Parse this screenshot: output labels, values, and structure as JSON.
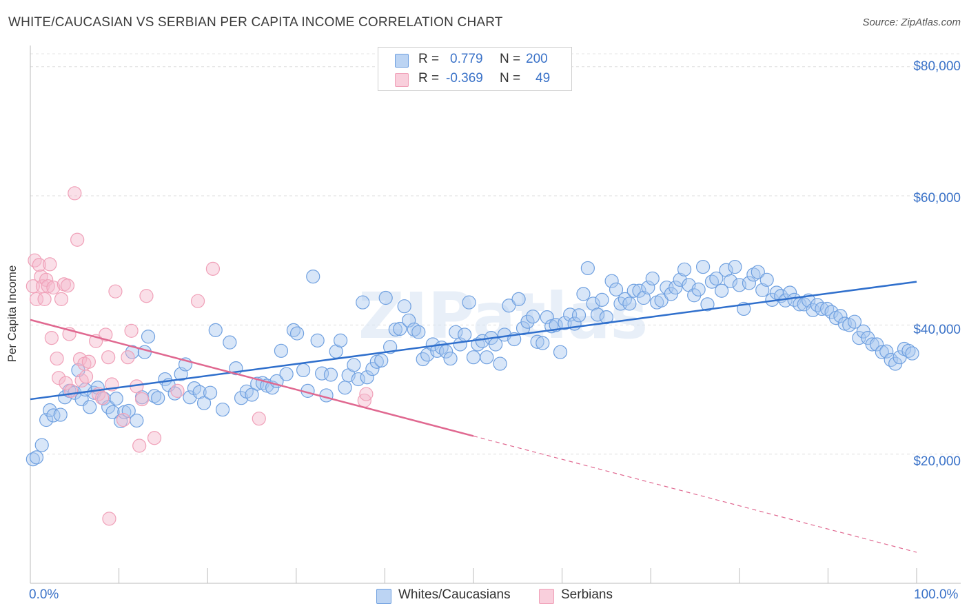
{
  "header": {
    "title": "WHITE/CAUCASIAN VS SERBIAN PER CAPITA INCOME CORRELATION CHART",
    "source": "Source: ZipAtlas.com"
  },
  "watermark": "ZIPatlas",
  "legend_top": {
    "rows": [
      {
        "r_label": "R =",
        "r_value": "0.779",
        "n_label": "N =",
        "n_value": "200",
        "color": "#a9c8f0"
      },
      {
        "r_label": "R =",
        "r_value": "-0.369",
        "n_label": "N =",
        "n_value": "49",
        "color": "#f5b8cb"
      }
    ]
  },
  "legend_bottom": [
    {
      "label": "Whites/Caucasians",
      "color": "#a9c8f0"
    },
    {
      "label": "Serbians",
      "color": "#f5b8cb"
    }
  ],
  "axis": {
    "ylabel": "Per Capita Income",
    "y_ticks": [
      "$80,000",
      "$60,000",
      "$40,000",
      "$20,000"
    ],
    "x_ticks": [
      "0.0%",
      "100.0%"
    ]
  },
  "chart_data": {
    "type": "scatter",
    "xlim": [
      0,
      100
    ],
    "ylim": [
      0,
      82000
    ],
    "x_unit": "%",
    "grid": true,
    "series": [
      {
        "name": "Whites/Caucasians",
        "color": "#6fa0e0",
        "trend": {
          "x": [
            0,
            100
          ],
          "y": [
            28500,
            46700
          ]
        },
        "points": [
          [
            0.3,
            19200
          ],
          [
            0.7,
            19500
          ],
          [
            1.3,
            21400
          ],
          [
            1.8,
            25300
          ],
          [
            2.2,
            26800
          ],
          [
            2.6,
            26000
          ],
          [
            3.4,
            26100
          ],
          [
            3.9,
            28800
          ],
          [
            4.4,
            29800
          ],
          [
            5.0,
            29500
          ],
          [
            5.4,
            33000
          ],
          [
            5.8,
            28500
          ],
          [
            6.2,
            30000
          ],
          [
            6.7,
            27300
          ],
          [
            7.2,
            29500
          ],
          [
            7.6,
            30300
          ],
          [
            8.3,
            28600
          ],
          [
            8.8,
            27300
          ],
          [
            9.3,
            26500
          ],
          [
            9.7,
            28600
          ],
          [
            10.2,
            25100
          ],
          [
            10.6,
            26500
          ],
          [
            11.1,
            26700
          ],
          [
            11.5,
            35800
          ],
          [
            12.0,
            25200
          ],
          [
            12.6,
            28800
          ],
          [
            12.9,
            35800
          ],
          [
            13.3,
            38200
          ],
          [
            14.0,
            29000
          ],
          [
            14.4,
            28700
          ],
          [
            15.2,
            31600
          ],
          [
            15.6,
            30700
          ],
          [
            16.3,
            29400
          ],
          [
            17.0,
            32400
          ],
          [
            17.5,
            33900
          ],
          [
            18.0,
            28800
          ],
          [
            18.5,
            30200
          ],
          [
            19.1,
            29600
          ],
          [
            19.6,
            27900
          ],
          [
            20.3,
            29500
          ],
          [
            20.9,
            39200
          ],
          [
            21.7,
            26900
          ],
          [
            22.5,
            37300
          ],
          [
            23.2,
            33300
          ],
          [
            23.8,
            28700
          ],
          [
            24.4,
            29700
          ],
          [
            25.0,
            29200
          ],
          [
            25.6,
            30900
          ],
          [
            26.2,
            31000
          ],
          [
            26.7,
            30600
          ],
          [
            27.3,
            30300
          ],
          [
            27.8,
            31300
          ],
          [
            28.3,
            36000
          ],
          [
            28.9,
            32400
          ],
          [
            29.7,
            39200
          ],
          [
            30.1,
            38700
          ],
          [
            30.8,
            33000
          ],
          [
            31.3,
            29800
          ],
          [
            31.9,
            47500
          ],
          [
            32.4,
            37600
          ],
          [
            32.9,
            32500
          ],
          [
            33.4,
            29100
          ],
          [
            33.9,
            32300
          ],
          [
            34.5,
            35900
          ],
          [
            35.0,
            37600
          ],
          [
            35.5,
            30300
          ],
          [
            35.9,
            32200
          ],
          [
            36.5,
            33800
          ],
          [
            37.0,
            31600
          ],
          [
            37.5,
            43500
          ],
          [
            38.0,
            31900
          ],
          [
            38.6,
            33200
          ],
          [
            39.1,
            34300
          ],
          [
            39.6,
            34500
          ],
          [
            40.1,
            44200
          ],
          [
            40.6,
            36600
          ],
          [
            41.2,
            39300
          ],
          [
            41.7,
            39400
          ],
          [
            42.2,
            42900
          ],
          [
            42.7,
            40700
          ],
          [
            43.3,
            39300
          ],
          [
            43.8,
            38900
          ],
          [
            44.3,
            34700
          ],
          [
            44.8,
            35400
          ],
          [
            45.4,
            37000
          ],
          [
            45.9,
            36000
          ],
          [
            46.4,
            36500
          ],
          [
            46.9,
            35900
          ],
          [
            47.4,
            34800
          ],
          [
            48.0,
            38900
          ],
          [
            48.5,
            37000
          ],
          [
            49.0,
            38500
          ],
          [
            49.5,
            43500
          ],
          [
            50.0,
            35000
          ],
          [
            50.5,
            37000
          ],
          [
            51.0,
            37500
          ],
          [
            51.5,
            35000
          ],
          [
            52.0,
            38000
          ],
          [
            52.5,
            37000
          ],
          [
            53.0,
            34000
          ],
          [
            53.5,
            38500
          ],
          [
            54.0,
            43000
          ],
          [
            54.6,
            37800
          ],
          [
            55.1,
            44000
          ],
          [
            55.6,
            39500
          ],
          [
            56.1,
            40500
          ],
          [
            56.7,
            41300
          ],
          [
            57.2,
            37400
          ],
          [
            57.8,
            37200
          ],
          [
            58.3,
            41200
          ],
          [
            58.8,
            39800
          ],
          [
            59.3,
            40000
          ],
          [
            59.8,
            35800
          ],
          [
            60.3,
            40300
          ],
          [
            60.9,
            41600
          ],
          [
            61.4,
            40200
          ],
          [
            61.9,
            41500
          ],
          [
            62.4,
            44800
          ],
          [
            62.9,
            48800
          ],
          [
            63.5,
            43300
          ],
          [
            64.0,
            41600
          ],
          [
            64.5,
            43900
          ],
          [
            65.0,
            41200
          ],
          [
            65.6,
            46800
          ],
          [
            66.1,
            45500
          ],
          [
            66.6,
            43300
          ],
          [
            67.1,
            44000
          ],
          [
            67.6,
            43300
          ],
          [
            68.1,
            45300
          ],
          [
            68.7,
            45300
          ],
          [
            69.2,
            44200
          ],
          [
            69.7,
            45800
          ],
          [
            70.2,
            47200
          ],
          [
            70.7,
            43500
          ],
          [
            71.2,
            43800
          ],
          [
            71.8,
            45800
          ],
          [
            72.3,
            44800
          ],
          [
            72.8,
            45800
          ],
          [
            73.3,
            47000
          ],
          [
            73.8,
            48600
          ],
          [
            74.3,
            46200
          ],
          [
            74.9,
            44600
          ],
          [
            75.4,
            45500
          ],
          [
            75.9,
            49000
          ],
          [
            76.4,
            43200
          ],
          [
            76.9,
            46700
          ],
          [
            77.4,
            47200
          ],
          [
            78.0,
            45300
          ],
          [
            78.5,
            48500
          ],
          [
            79.0,
            46800
          ],
          [
            79.5,
            49000
          ],
          [
            80.0,
            46200
          ],
          [
            80.5,
            42500
          ],
          [
            81.1,
            46500
          ],
          [
            81.6,
            47800
          ],
          [
            82.1,
            48200
          ],
          [
            82.6,
            45400
          ],
          [
            83.1,
            47000
          ],
          [
            83.7,
            43900
          ],
          [
            84.2,
            45000
          ],
          [
            84.7,
            44500
          ],
          [
            85.2,
            43800
          ],
          [
            85.7,
            45000
          ],
          [
            86.2,
            43900
          ],
          [
            86.8,
            43200
          ],
          [
            87.3,
            43200
          ],
          [
            87.8,
            43800
          ],
          [
            88.3,
            42300
          ],
          [
            88.8,
            43100
          ],
          [
            89.3,
            42500
          ],
          [
            89.9,
            42500
          ],
          [
            90.4,
            42000
          ],
          [
            90.9,
            41100
          ],
          [
            91.4,
            41400
          ],
          [
            91.9,
            40200
          ],
          [
            92.4,
            40000
          ],
          [
            93.0,
            40500
          ],
          [
            93.5,
            38000
          ],
          [
            94.0,
            39000
          ],
          [
            94.5,
            38000
          ],
          [
            95.0,
            37000
          ],
          [
            95.5,
            37000
          ],
          [
            96.1,
            35800
          ],
          [
            96.6,
            35900
          ],
          [
            97.1,
            34600
          ],
          [
            97.6,
            34000
          ],
          [
            98.1,
            35000
          ],
          [
            98.6,
            36300
          ],
          [
            99.1,
            36000
          ],
          [
            99.5,
            35600
          ]
        ]
      },
      {
        "name": "Serbians",
        "color": "#f0a0b8",
        "trend": {
          "x": [
            0,
            50
          ],
          "y": [
            40800,
            22800
          ],
          "dashed_to": [
            100,
            4800
          ]
        },
        "points": [
          [
            0.3,
            46000
          ],
          [
            0.5,
            50000
          ],
          [
            0.7,
            44000
          ],
          [
            1.0,
            49300
          ],
          [
            1.2,
            47500
          ],
          [
            1.4,
            46000
          ],
          [
            1.6,
            44000
          ],
          [
            1.8,
            47000
          ],
          [
            2.0,
            46000
          ],
          [
            2.2,
            49400
          ],
          [
            2.4,
            38000
          ],
          [
            2.6,
            45800
          ],
          [
            3.0,
            34800
          ],
          [
            3.2,
            31800
          ],
          [
            3.5,
            44000
          ],
          [
            3.8,
            46300
          ],
          [
            4.0,
            31000
          ],
          [
            4.2,
            46100
          ],
          [
            4.4,
            38600
          ],
          [
            4.6,
            29800
          ],
          [
            5.0,
            60400
          ],
          [
            5.3,
            53200
          ],
          [
            5.6,
            34700
          ],
          [
            5.8,
            31400
          ],
          [
            6.1,
            34000
          ],
          [
            6.3,
            32000
          ],
          [
            6.6,
            34300
          ],
          [
            7.4,
            37500
          ],
          [
            7.7,
            29300
          ],
          [
            8.1,
            28700
          ],
          [
            8.5,
            38500
          ],
          [
            8.8,
            35000
          ],
          [
            8.9,
            10000
          ],
          [
            9.2,
            30800
          ],
          [
            9.6,
            45200
          ],
          [
            10.5,
            25300
          ],
          [
            11.0,
            35000
          ],
          [
            11.4,
            39100
          ],
          [
            12.0,
            30500
          ],
          [
            12.3,
            21300
          ],
          [
            12.6,
            28500
          ],
          [
            13.1,
            44500
          ],
          [
            14.0,
            22500
          ],
          [
            16.6,
            29800
          ],
          [
            18.9,
            43700
          ],
          [
            20.6,
            48700
          ],
          [
            25.8,
            25500
          ],
          [
            37.7,
            28300
          ],
          [
            37.9,
            29300
          ]
        ]
      }
    ]
  }
}
